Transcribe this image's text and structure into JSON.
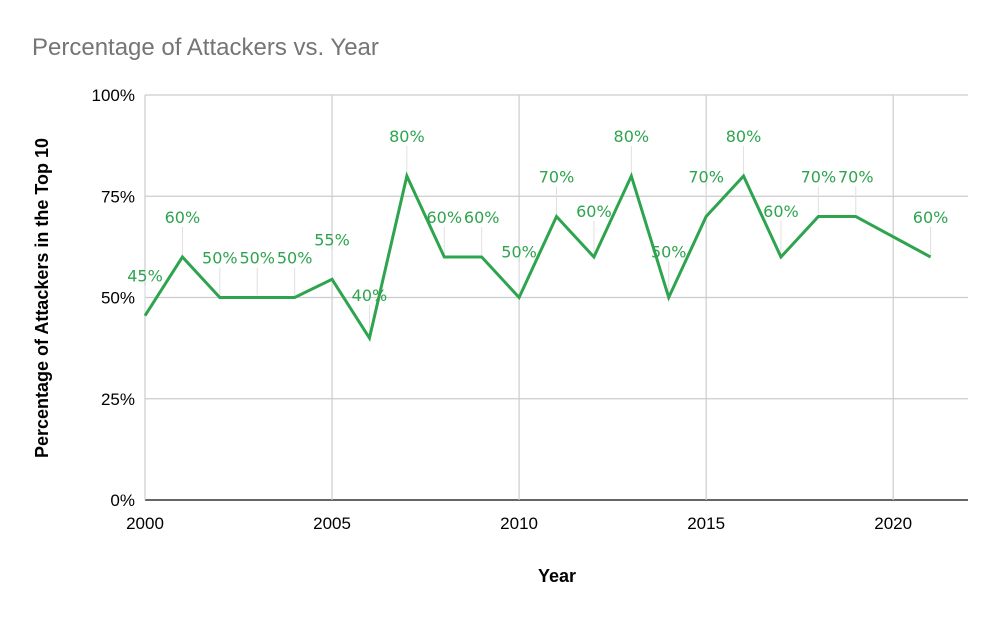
{
  "colors": {
    "series": "#2ea44f",
    "title": "#757575",
    "grid": "#cccccc"
  },
  "chart_data": {
    "type": "line",
    "title": "Percentage of Attackers vs. Year",
    "xlabel": "Year",
    "ylabel": "Percentage of Attackers in the Top 10",
    "xlim": [
      2000,
      2022
    ],
    "ylim": [
      0,
      100
    ],
    "x_ticks": [
      2000,
      2005,
      2010,
      2015,
      2020
    ],
    "y_ticks": [
      0,
      25,
      50,
      75,
      100
    ],
    "y_tick_labels": [
      "0%",
      "25%",
      "50%",
      "75%",
      "100%"
    ],
    "grid": true,
    "legend": "none",
    "series": [
      {
        "x": [
          2000,
          2001,
          2002,
          2003,
          2004,
          2005,
          2006,
          2007,
          2008,
          2009,
          2010,
          2011,
          2012,
          2013,
          2014,
          2015,
          2016,
          2017,
          2018,
          2019,
          2021
        ],
        "values": [
          45.5,
          60,
          50,
          50,
          50,
          54.5,
          40,
          80,
          60,
          60,
          50,
          70,
          60,
          80,
          50,
          70,
          80,
          60,
          70,
          70,
          60
        ],
        "labels": [
          "45%",
          "60%",
          "50%",
          "50%",
          "50%",
          "55%",
          "40%",
          "80%",
          "60%",
          "60%",
          "50%",
          "70%",
          "60%",
          "80%",
          "50%",
          "70%",
          "80%",
          "60%",
          "70%",
          "70%",
          "60%"
        ]
      }
    ]
  }
}
